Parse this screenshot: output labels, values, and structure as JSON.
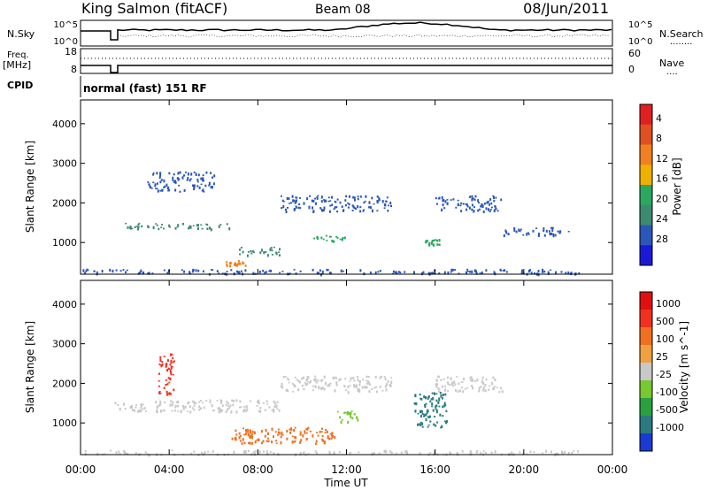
{
  "header": {
    "station": "King Salmon (fitACF)",
    "beam": "Beam 08",
    "date": "08/Jun/2011"
  },
  "noise_panel": {
    "left_label": "N.Sky",
    "right_label": "N.Search",
    "right_legend": "........",
    "left_ticks": [
      "10^5",
      "10^0"
    ],
    "right_ticks": [
      "10^5",
      "10^0"
    ]
  },
  "freq_panel": {
    "left_label_1": "Freq.",
    "left_label_2": "[MHz]",
    "right_label": "Nave",
    "right_legend": "....",
    "left_ticks": [
      "18",
      "8"
    ],
    "right_ticks": [
      "60",
      "0"
    ]
  },
  "cpid_panel": {
    "label": "CPID",
    "value": "normal (fast) 151 RF"
  },
  "x_axis": {
    "label": "Time UT",
    "ticks": [
      "00:00",
      "04:00",
      "08:00",
      "12:00",
      "16:00",
      "20:00",
      "00:00"
    ]
  },
  "chart_data": [
    {
      "type": "heatmap",
      "name": "power",
      "ylabel": "Slant Range [km]",
      "ylim": [
        200,
        4600
      ],
      "yticks": [
        "1000",
        "2000",
        "3000",
        "4000"
      ],
      "xlim_hours": [
        0,
        24
      ],
      "colorbar_label": "Power [dB]",
      "colorbar_ticks": [
        "4",
        "8",
        "12",
        "16",
        "20",
        "24",
        "28"
      ],
      "colorbar_colors": [
        "#1a1ad6",
        "#2c57b8",
        "#3d8a70",
        "#2aa860",
        "#f0b000",
        "#f08020",
        "#e05020",
        "#e02020"
      ],
      "features": [
        {
          "t0": 0.0,
          "t1": 22.5,
          "r0": 220,
          "r1": 340,
          "color": "#2c57b8"
        },
        {
          "t0": 2.0,
          "t1": 7.0,
          "r0": 1350,
          "r1": 1500,
          "color": "#3d8a70"
        },
        {
          "t0": 7.0,
          "t1": 9.0,
          "r0": 700,
          "r1": 900,
          "color": "#3d8a70"
        },
        {
          "t0": 6.5,
          "t1": 7.5,
          "r0": 420,
          "r1": 560,
          "color": "#f08020"
        },
        {
          "t0": 10.5,
          "t1": 12.0,
          "r0": 1050,
          "r1": 1200,
          "color": "#2aa860"
        },
        {
          "t0": 15.5,
          "t1": 16.2,
          "r0": 950,
          "r1": 1150,
          "color": "#2aa860"
        },
        {
          "t0": 3.0,
          "t1": 6.0,
          "r0": 2300,
          "r1": 2800,
          "color": "#2c57b8"
        },
        {
          "t0": 9.0,
          "t1": 14.0,
          "r0": 1800,
          "r1": 2200,
          "color": "#2c57b8"
        },
        {
          "t0": 16.0,
          "t1": 19.0,
          "r0": 1800,
          "r1": 2200,
          "color": "#2c57b8"
        },
        {
          "t0": 19.0,
          "t1": 22.0,
          "r0": 1200,
          "r1": 1400,
          "color": "#2c57b8"
        }
      ]
    },
    {
      "type": "heatmap",
      "name": "velocity",
      "ylabel": "Slant Range [km]",
      "ylim": [
        200,
        4600
      ],
      "yticks": [
        "1000",
        "2000",
        "3000",
        "4000"
      ],
      "xlim_hours": [
        0,
        24
      ],
      "colorbar_label": "Velocity [m s^-1]",
      "colorbar_ticks": [
        "1000",
        "500",
        "100",
        "25",
        "-25",
        "-100",
        "-500",
        "-1000"
      ],
      "colorbar_colors": [
        "#1a3ad0",
        "#2a7a80",
        "#2aa040",
        "#78c830",
        "#c8c8c8",
        "#f0a040",
        "#f07020",
        "#f03020",
        "#e01010"
      ],
      "features": [
        {
          "t0": 0.0,
          "t1": 22.5,
          "r0": 220,
          "r1": 320,
          "color": "#c8c8c8"
        },
        {
          "t0": 1.5,
          "t1": 9.0,
          "r0": 1300,
          "r1": 1600,
          "color": "#c8c8c8"
        },
        {
          "t0": 3.5,
          "t1": 4.2,
          "r0": 1700,
          "r1": 2800,
          "color": "#f03020"
        },
        {
          "t0": 6.8,
          "t1": 11.5,
          "r0": 500,
          "r1": 900,
          "color": "#f07020"
        },
        {
          "t0": 11.5,
          "t1": 12.5,
          "r0": 1050,
          "r1": 1350,
          "color": "#78c830"
        },
        {
          "t0": 15.0,
          "t1": 16.5,
          "r0": 900,
          "r1": 1800,
          "color": "#2a7a80"
        },
        {
          "t0": 9.0,
          "t1": 14.0,
          "r0": 1800,
          "r1": 2200,
          "color": "#c8c8c8"
        },
        {
          "t0": 16.0,
          "t1": 19.0,
          "r0": 1800,
          "r1": 2200,
          "color": "#c8c8c8"
        }
      ]
    }
  ]
}
